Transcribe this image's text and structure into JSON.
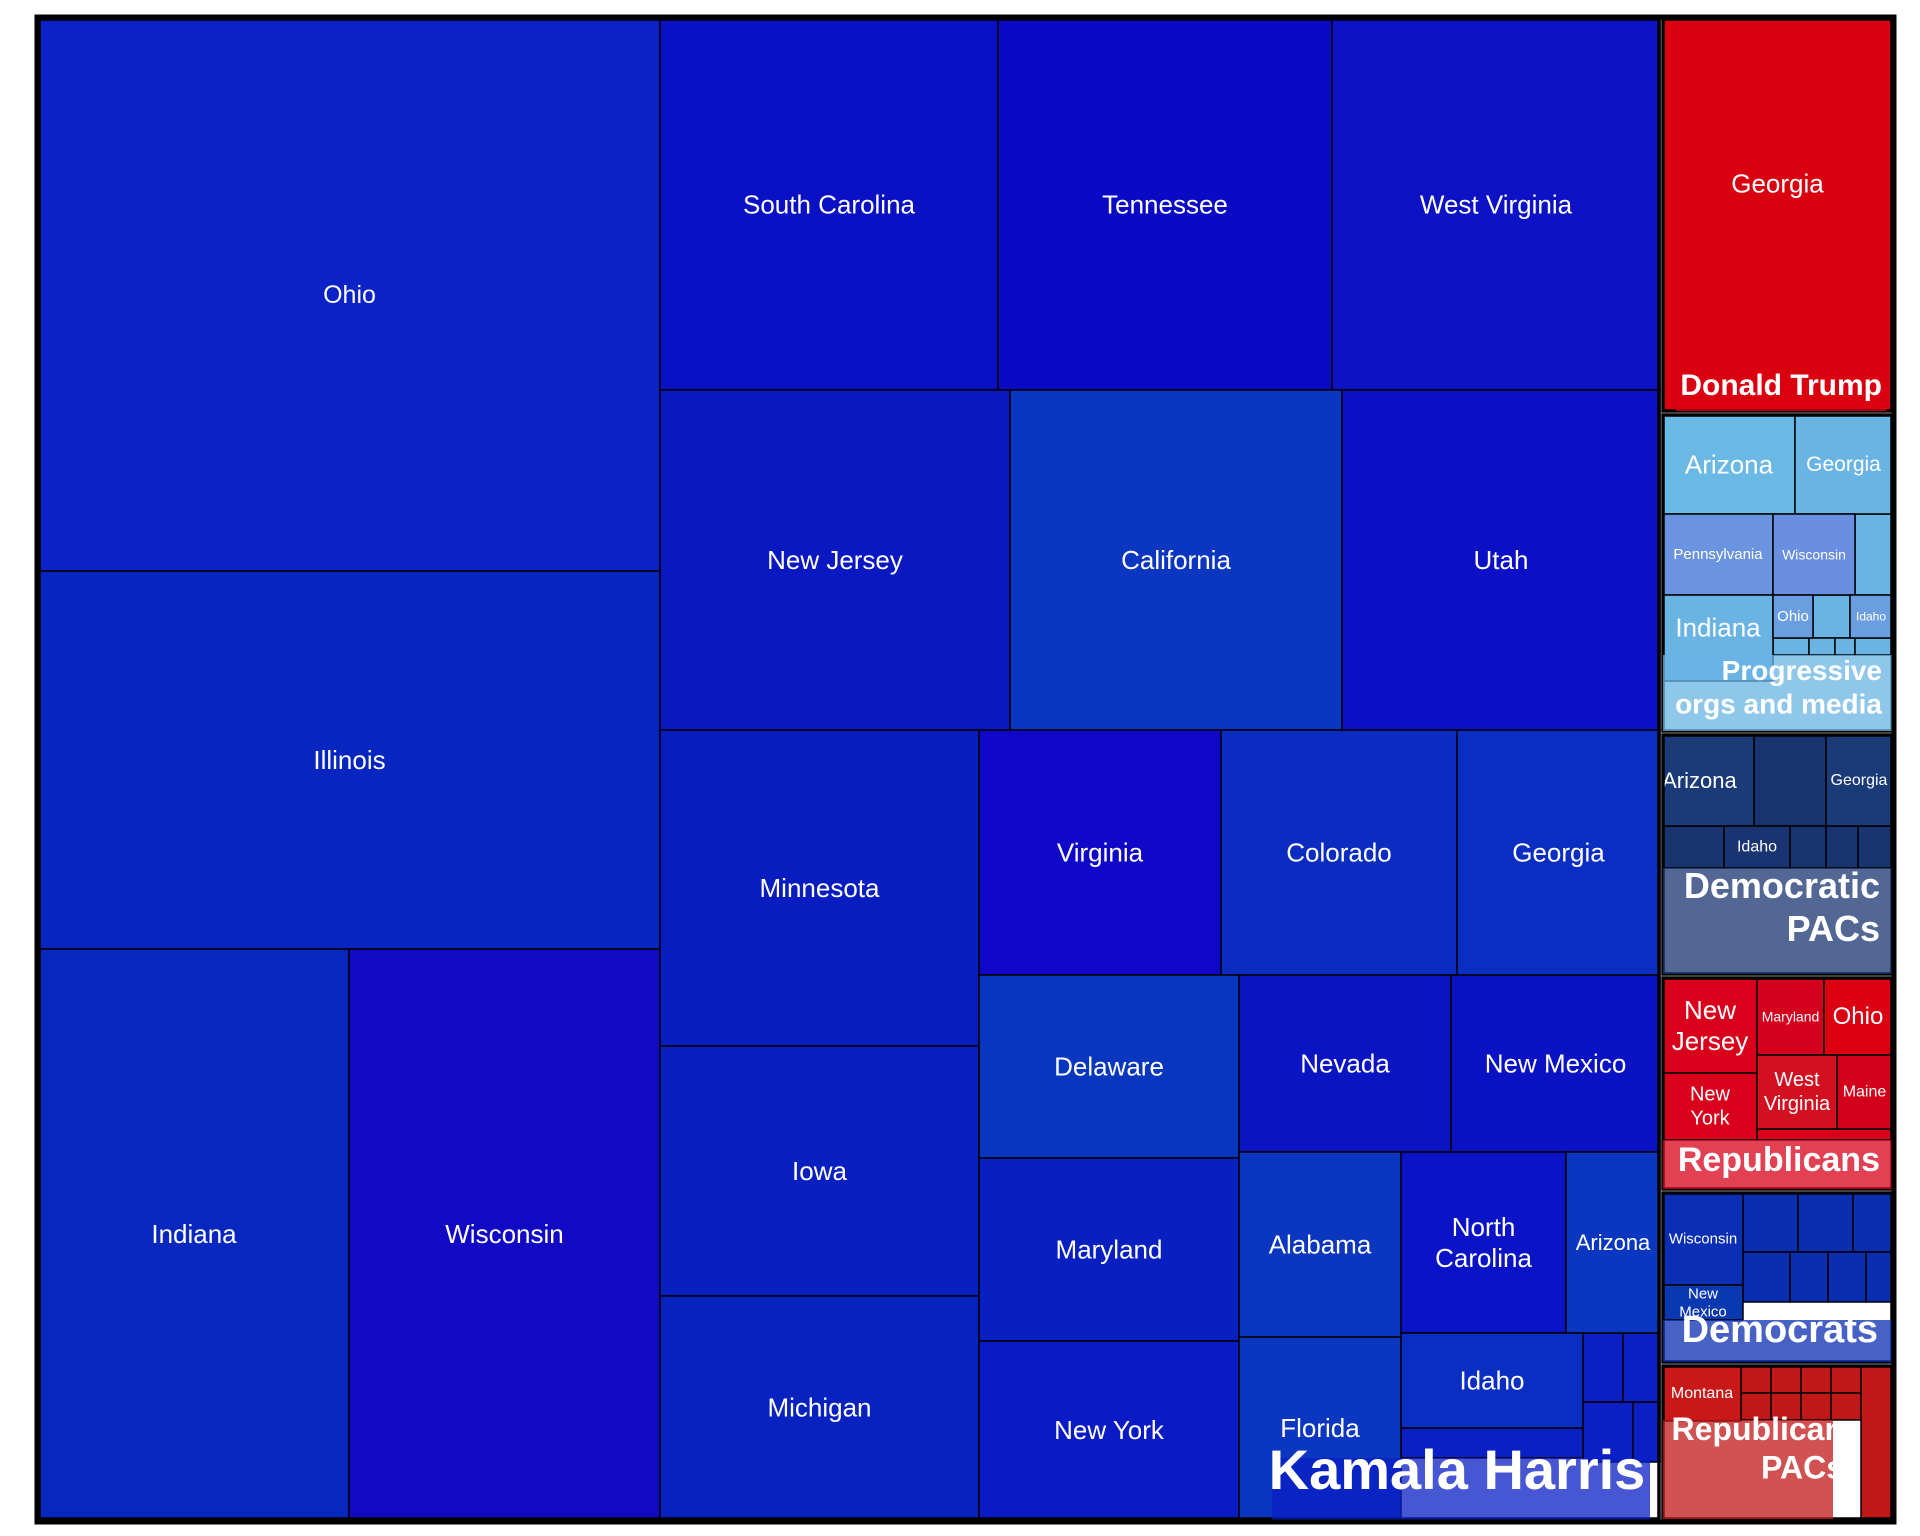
{
  "chart_data": {
    "type": "treemap",
    "title": "",
    "groups": [
      {
        "name": "Kamala Harris",
        "color": "#0a1fc4",
        "children": [
          {
            "label": "Ohio",
            "color": "#0b22c6"
          },
          {
            "label": "Illinois",
            "color": "#0726bf"
          },
          {
            "label": "Indiana",
            "color": "#0827be"
          },
          {
            "label": "Wisconsin",
            "color": "#1109c3"
          },
          {
            "label": "South Carolina",
            "color": "#0a10c3"
          },
          {
            "label": "Tennessee",
            "color": "#0a0ac4"
          },
          {
            "label": "West Virginia",
            "color": "#0d12c5"
          },
          {
            "label": "New Jersey",
            "color": "#0a18c2"
          },
          {
            "label": "California",
            "color": "#0a36c0"
          },
          {
            "label": "Utah",
            "color": "#0b10c6"
          },
          {
            "label": "Minnesota",
            "color": "#081dc0"
          },
          {
            "label": "Iowa",
            "color": "#0820bf"
          },
          {
            "label": "Michigan",
            "color": "#0822c0"
          },
          {
            "label": "Virginia",
            "color": "#1008c8"
          },
          {
            "label": "Colorado",
            "color": "#0b2cc0"
          },
          {
            "label": "Georgia",
            "color": "#0a2ec2"
          },
          {
            "label": "Delaware",
            "color": "#0836bf"
          },
          {
            "label": "Maryland",
            "color": "#0820c1"
          },
          {
            "label": "New York",
            "color": "#0a1ac4"
          },
          {
            "label": "Nevada",
            "color": "#0a14c2"
          },
          {
            "label": "New Mexico",
            "color": "#0a12c4"
          },
          {
            "label": "Alabama",
            "color": "#0a36c0"
          },
          {
            "label": "Florida",
            "color": "#0a36c0"
          },
          {
            "label": "North Carolina",
            "color": "#0a14c6"
          },
          {
            "label": "Arizona",
            "color": "#0a36c0"
          },
          {
            "label": "Idaho",
            "color": "#0a2ec2"
          }
        ]
      },
      {
        "name": "Donald Trump",
        "color": "#d90010",
        "children": [
          {
            "label": "Georgia",
            "color": "#d90010"
          }
        ]
      },
      {
        "name": "Progressive orgs and media",
        "color": "#6ab4e4",
        "children": [
          {
            "label": "Arizona",
            "color": "#6ab8e4"
          },
          {
            "label": "Georgia",
            "color": "#6ab4e4"
          },
          {
            "label": "Pennsylvania",
            "color": "#6a94e0"
          },
          {
            "label": "Wisconsin",
            "color": "#6a8ee0"
          },
          {
            "label": "Indiana",
            "color": "#6ab4e4"
          },
          {
            "label": "Ohio",
            "color": "#6a9ee0"
          },
          {
            "label": "Idaho",
            "color": "#6a9ee0"
          }
        ]
      },
      {
        "name": "Democratic PACs",
        "color": "#1a3470",
        "children": [
          {
            "label": "Arizona",
            "color": "#1a3a78"
          },
          {
            "label": "Georgia",
            "color": "#1a3a78"
          },
          {
            "label": "Idaho",
            "color": "#1a3472"
          }
        ]
      },
      {
        "name": "Republicans",
        "color": "#d8001a",
        "children": [
          {
            "label": "New Jersey",
            "color": "#d8001a"
          },
          {
            "label": "Maryland",
            "color": "#d4001e"
          },
          {
            "label": "Ohio",
            "color": "#da0012"
          },
          {
            "label": "New York",
            "color": "#d8001a"
          },
          {
            "label": "West Virginia",
            "color": "#d21020"
          },
          {
            "label": "Maine",
            "color": "#d20018"
          }
        ]
      },
      {
        "name": "Democrats",
        "color": "#0a2eb0",
        "children": [
          {
            "label": "Wisconsin",
            "color": "#0a2eb4"
          },
          {
            "label": "New Mexico",
            "color": "#0a38b0"
          }
        ]
      },
      {
        "name": "Republican PACs",
        "color": "#c01818",
        "children": [
          {
            "label": "Montana",
            "color": "#c81818"
          }
        ]
      }
    ]
  }
}
